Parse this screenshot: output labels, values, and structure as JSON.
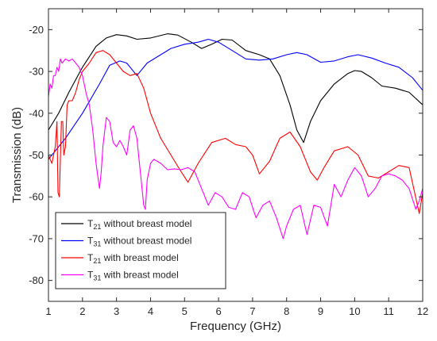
{
  "chart_data": {
    "type": "line",
    "xlabel": "Frequency (GHz)",
    "ylabel": "Transmission (dB)",
    "xlim": [
      1,
      12
    ],
    "ylim": [
      -85,
      -15
    ],
    "xticks": [
      1,
      2,
      3,
      4,
      5,
      6,
      7,
      8,
      9,
      10,
      11,
      12
    ],
    "yticks": [
      -20,
      -30,
      -40,
      -50,
      -60,
      -70,
      -80
    ],
    "grid": false,
    "legend_position": "bottom-left",
    "series": [
      {
        "name_main": "T",
        "name_sub": "21",
        "name_rest": " without breast model",
        "color": "#000000",
        "x": [
          1,
          1.3,
          1.6,
          2,
          2.4,
          2.7,
          3,
          3.3,
          3.6,
          4,
          4.5,
          4.8,
          5.2,
          5.5,
          5.8,
          6.1,
          6.4,
          6.8,
          7.2,
          7.5,
          7.8,
          8.1,
          8.3,
          8.5,
          8.7,
          9,
          9.4,
          9.8,
          10,
          10.2,
          10.5,
          10.8,
          11.2,
          11.6,
          12
        ],
        "y": [
          -44,
          -40,
          -35,
          -29,
          -24,
          -22,
          -21.2,
          -21.5,
          -22.3,
          -22,
          -21,
          -21.3,
          -23,
          -24.5,
          -23.5,
          -22.3,
          -22.5,
          -25,
          -26,
          -27,
          -31,
          -38,
          -44,
          -47,
          -42,
          -37,
          -33,
          -30.5,
          -29.8,
          -30,
          -31.5,
          -33.5,
          -34,
          -35,
          -38
        ]
      },
      {
        "name_main": "T",
        "name_sub": "31",
        "name_rest": " without breast model",
        "color": "#0000ff",
        "x": [
          1,
          1.5,
          2,
          2.5,
          2.8,
          3.1,
          3.3,
          3.6,
          3.9,
          4.2,
          4.6,
          5,
          5.4,
          5.7,
          6,
          6.4,
          6.8,
          7.2,
          7.6,
          8,
          8.3,
          8.6,
          9,
          9.4,
          9.8,
          10.1,
          10.5,
          10.9,
          11.3,
          11.7,
          12
        ],
        "y": [
          -51,
          -46,
          -40,
          -33,
          -28.5,
          -27.5,
          -28,
          -31,
          -28,
          -26.5,
          -24.5,
          -23.5,
          -23,
          -22.3,
          -23,
          -25,
          -27,
          -27.3,
          -27,
          -26,
          -25.5,
          -26,
          -27.8,
          -27.5,
          -26.5,
          -26,
          -26.8,
          -28,
          -29,
          -31.5,
          -34.5
        ]
      },
      {
        "name_main": "T",
        "name_sub": "21",
        "name_rest": " with breast model",
        "color": "#ff0000",
        "x": [
          1,
          1.05,
          1.1,
          1.15,
          1.2,
          1.25,
          1.28,
          1.32,
          1.38,
          1.42,
          1.45,
          1.5,
          1.55,
          1.6,
          1.7,
          1.8,
          1.9,
          2,
          2.2,
          2.4,
          2.6,
          2.8,
          3,
          3.2,
          3.4,
          3.6,
          3.8,
          4,
          4.3,
          4.6,
          4.9,
          5.1,
          5.4,
          5.8,
          6.2,
          6.5,
          6.8,
          7,
          7.2,
          7.5,
          7.8,
          8.1,
          8.4,
          8.7,
          8.9,
          9.1,
          9.4,
          9.8,
          10.1,
          10.4,
          10.7,
          11,
          11.3,
          11.6,
          11.9,
          12
        ],
        "y": [
          -50,
          -51,
          -52,
          -50,
          -48,
          -42,
          -59,
          -60,
          -42,
          -42,
          -50,
          -48,
          -38,
          -37,
          -37,
          -35,
          -32,
          -30,
          -28,
          -25.5,
          -25,
          -26,
          -28,
          -30,
          -31,
          -30.5,
          -34,
          -40,
          -46,
          -50,
          -54,
          -56.5,
          -52,
          -47,
          -46,
          -47.5,
          -48,
          -50,
          -54.5,
          -51.5,
          -46,
          -44.5,
          -48,
          -54,
          -56,
          -53,
          -49,
          -48,
          -50,
          -55,
          -55.5,
          -54,
          -52.5,
          -53,
          -64,
          -59
        ]
      },
      {
        "name_main": "T",
        "name_sub": "31",
        "name_rest": " with breast model",
        "color": "#ff00ff",
        "x": [
          1,
          1.05,
          1.1,
          1.15,
          1.2,
          1.25,
          1.3,
          1.35,
          1.4,
          1.45,
          1.5,
          1.6,
          1.7,
          1.8,
          1.9,
          2,
          2.1,
          2.2,
          2.3,
          2.4,
          2.5,
          2.55,
          2.6,
          2.7,
          2.8,
          2.9,
          3,
          3.1,
          3.2,
          3.3,
          3.4,
          3.5,
          3.6,
          3.7,
          3.8,
          3.85,
          3.9,
          4,
          4.1,
          4.3,
          4.5,
          4.7,
          4.9,
          5.1,
          5.3,
          5.5,
          5.7,
          5.9,
          6.1,
          6.3,
          6.5,
          6.7,
          6.9,
          7.1,
          7.3,
          7.5,
          7.7,
          7.9,
          8,
          8.2,
          8.4,
          8.6,
          8.8,
          9,
          9.2,
          9.4,
          9.6,
          9.8,
          10,
          10.2,
          10.4,
          10.6,
          10.8,
          11,
          11.2,
          11.4,
          11.6,
          11.8,
          11.9,
          12
        ],
        "y": [
          -36,
          -33,
          -34,
          -31,
          -31,
          -29,
          -30,
          -27,
          -28,
          -27.5,
          -27,
          -27.5,
          -27,
          -28,
          -29,
          -31,
          -35,
          -38,
          -44,
          -52,
          -58,
          -54,
          -48,
          -41,
          -42,
          -47,
          -48,
          -46.5,
          -48,
          -50,
          -44,
          -43,
          -46,
          -54,
          -62,
          -63,
          -56,
          -52,
          -51,
          -52,
          -53.5,
          -53.3,
          -53.5,
          -53,
          -54,
          -58,
          -62,
          -59,
          -60,
          -62.5,
          -63,
          -59,
          -60,
          -65,
          -62,
          -61,
          -65,
          -70,
          -67,
          -63,
          -62,
          -69,
          -62,
          -62.5,
          -67,
          -57,
          -60,
          -56,
          -53,
          -55,
          -60,
          -58,
          -55,
          -54.5,
          -55,
          -56,
          -58,
          -63,
          -61,
          -58
        ]
      }
    ]
  }
}
